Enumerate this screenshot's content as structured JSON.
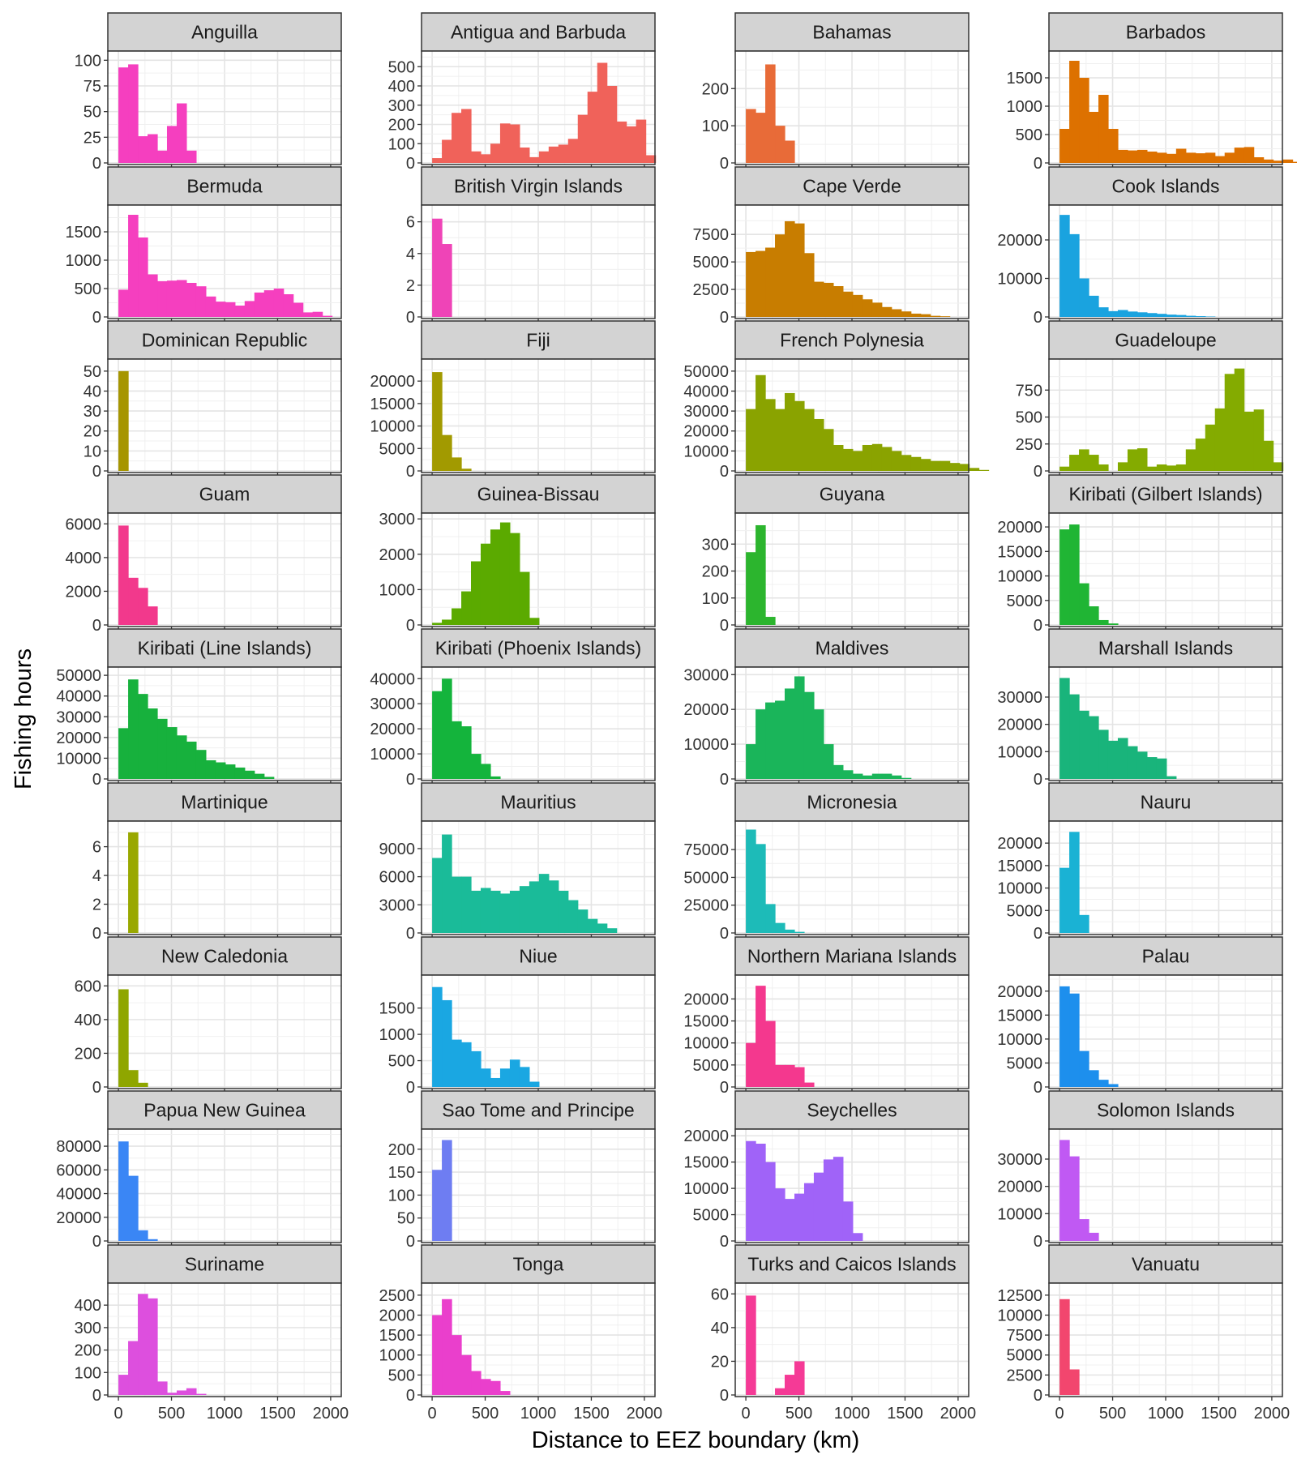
{
  "chart_data": {
    "type": "bar",
    "layout": "facet-grid",
    "xlabel": "Distance to EEZ boundary (km)",
    "ylabel": "Fishing hours",
    "x_axis": {
      "range": [
        -100,
        2100
      ],
      "ticks": [
        0,
        500,
        1000,
        1500,
        2000
      ],
      "tick_labels": [
        "0",
        "500",
        "1000",
        "1500",
        "2000"
      ]
    },
    "bin_width": 91.5,
    "grid": true,
    "strip_fill": "#d3d3d3",
    "panels": [
      {
        "name": "Anguilla",
        "color": "#f53fbf",
        "ymax": 105,
        "ticks": [
          0,
          25,
          50,
          75,
          100
        ],
        "values": [
          93,
          96,
          26,
          28,
          12,
          36,
          58,
          12
        ]
      },
      {
        "name": "Antigua and Barbuda",
        "color": "#f0625a",
        "ymax": 560,
        "ticks": [
          0,
          100,
          200,
          300,
          400,
          500
        ],
        "values": [
          25,
          120,
          260,
          280,
          60,
          45,
          100,
          205,
          200,
          80,
          30,
          60,
          85,
          95,
          125,
          250,
          370,
          520,
          400,
          215,
          190,
          225,
          40
        ]
      },
      {
        "name": "Bahamas",
        "color": "#e86b38",
        "ymax": 290,
        "ticks": [
          0,
          100,
          200
        ],
        "values": [
          145,
          135,
          265,
          100,
          60
        ]
      },
      {
        "name": "Barbados",
        "color": "#dd7100",
        "ymax": 1900,
        "ticks": [
          0,
          500,
          1000,
          1500
        ],
        "values": [
          600,
          1800,
          1500,
          900,
          1200,
          600,
          230,
          220,
          230,
          200,
          180,
          160,
          250,
          180,
          170,
          180,
          120,
          180,
          270,
          280,
          100,
          60,
          40,
          60,
          20
        ]
      },
      {
        "name": "Bermuda",
        "color": "#f53fbf",
        "ymax": 1900,
        "ticks": [
          0,
          500,
          1000,
          1500
        ],
        "values": [
          480,
          1800,
          1400,
          750,
          630,
          640,
          650,
          600,
          540,
          360,
          270,
          260,
          200,
          280,
          430,
          470,
          500,
          400,
          250,
          80,
          90,
          20
        ]
      },
      {
        "name": "British Virgin Islands",
        "color": "#ef44b7",
        "ymax": 6.8,
        "ticks": [
          0,
          2,
          4,
          6
        ],
        "values": [
          6.2,
          4.6
        ]
      },
      {
        "name": "Cape Verde",
        "color": "#c87d00",
        "ymax": 9800,
        "ticks": [
          0,
          2500,
          5000,
          7500
        ],
        "values": [
          5900,
          6000,
          6300,
          7500,
          8700,
          8500,
          5800,
          3200,
          3100,
          2800,
          2300,
          2000,
          1600,
          1300,
          900,
          700,
          500,
          300,
          250,
          100,
          60
        ]
      },
      {
        "name": "Cook Islands",
        "color": "#1aa3df",
        "ymax": 28000,
        "ticks": [
          0,
          10000,
          20000
        ],
        "values": [
          26500,
          21500,
          10000,
          5500,
          2500,
          1500,
          1800,
          1400,
          1200,
          1000,
          800,
          600,
          500,
          300,
          200,
          100
        ]
      },
      {
        "name": "Dominican Republic",
        "color": "#a69500",
        "ymax": 54,
        "ticks": [
          0,
          10,
          20,
          30,
          40,
          50
        ],
        "values": [
          50
        ]
      },
      {
        "name": "Fiji",
        "color": "#a29a00",
        "ymax": 24000,
        "ticks": [
          0,
          5000,
          10000,
          15000,
          20000
        ],
        "values": [
          22000,
          8000,
          3000,
          500
        ]
      },
      {
        "name": "French Polynesia",
        "color": "#8aa300",
        "ymax": 54000,
        "ticks": [
          0,
          10000,
          20000,
          30000,
          40000,
          50000
        ],
        "values": [
          31000,
          48000,
          36000,
          31000,
          39000,
          35000,
          31000,
          26000,
          21000,
          13000,
          11000,
          10000,
          13000,
          13500,
          12000,
          10000,
          8000,
          7000,
          6000,
          5000,
          5000,
          4000,
          3500,
          1500,
          500
        ]
      },
      {
        "name": "Guadeloupe",
        "color": "#84ab00",
        "ymax": 1000,
        "ticks": [
          0,
          250,
          500,
          750
        ],
        "values": [
          40,
          150,
          200,
          150,
          60,
          0,
          80,
          200,
          210,
          40,
          60,
          50,
          60,
          200,
          300,
          430,
          580,
          900,
          950,
          550,
          570,
          280,
          80
        ]
      },
      {
        "name": "Guam",
        "color": "#f2398c",
        "ymax": 6400,
        "ticks": [
          0,
          2000,
          4000,
          6000
        ],
        "values": [
          5900,
          2800,
          2200,
          1100
        ]
      },
      {
        "name": "Guinea-Bissau",
        "color": "#5baa00",
        "ymax": 3050,
        "ticks": [
          0,
          1000,
          2000,
          3000
        ],
        "values": [
          60,
          150,
          470,
          950,
          1800,
          2300,
          2700,
          2900,
          2600,
          1500,
          200
        ]
      },
      {
        "name": "Guyana",
        "color": "#2cb52e",
        "ymax": 400,
        "ticks": [
          0,
          100,
          200,
          300
        ],
        "values": [
          270,
          370,
          30
        ]
      },
      {
        "name": "Kiribati (Gilbert Islands)",
        "color": "#20b534",
        "ymax": 22000,
        "ticks": [
          0,
          5000,
          10000,
          15000,
          20000
        ],
        "values": [
          19500,
          20500,
          8500,
          3800,
          1000,
          300
        ]
      },
      {
        "name": "Kiribati (Line Islands)",
        "color": "#17b13d",
        "ymax": 52000,
        "ticks": [
          0,
          10000,
          20000,
          30000,
          40000,
          50000
        ],
        "values": [
          24500,
          48000,
          41000,
          34000,
          29000,
          25000,
          21000,
          18000,
          14000,
          9000,
          8000,
          7000,
          5500,
          4000,
          2500,
          1000
        ]
      },
      {
        "name": "Kiribati (Phoenix Islands)",
        "color": "#14b43c",
        "ymax": 43000,
        "ticks": [
          0,
          10000,
          20000,
          30000,
          40000
        ],
        "values": [
          35000,
          40000,
          23000,
          21000,
          10000,
          6000,
          1000
        ]
      },
      {
        "name": "Maldives",
        "color": "#1ab55a",
        "ymax": 31000,
        "ticks": [
          0,
          10000,
          20000,
          30000
        ],
        "values": [
          10000,
          20000,
          22000,
          22500,
          26000,
          29500,
          25000,
          20000,
          10000,
          4000,
          2500,
          1500,
          1000,
          1500,
          1500,
          1000,
          300
        ]
      },
      {
        "name": "Marshall Islands",
        "color": "#19b47b",
        "ymax": 39500,
        "ticks": [
          0,
          10000,
          20000,
          30000
        ],
        "values": [
          37000,
          31000,
          25000,
          23000,
          18000,
          14000,
          15000,
          12000,
          10000,
          8000,
          7500,
          1000
        ]
      },
      {
        "name": "Martinique",
        "color": "#99a800",
        "ymax": 7.5,
        "ticks": [
          0,
          2,
          4,
          6
        ],
        "values": [
          0,
          7
        ]
      },
      {
        "name": "Mauritius",
        "color": "#1abb99",
        "ymax": 11500,
        "ticks": [
          0,
          3000,
          6000,
          9000
        ],
        "values": [
          8000,
          10500,
          6000,
          6000,
          4500,
          4800,
          4500,
          4200,
          4500,
          5000,
          5500,
          6300,
          5600,
          4500,
          3500,
          2500,
          1500,
          1000,
          500
        ]
      },
      {
        "name": "Micronesia",
        "color": "#1dbbb8",
        "ymax": 97000,
        "ticks": [
          0,
          25000,
          50000,
          75000
        ],
        "values": [
          93000,
          80000,
          26000,
          9000,
          3000,
          1000
        ]
      },
      {
        "name": "Nauru",
        "color": "#1ab2d4",
        "ymax": 24000,
        "ticks": [
          0,
          5000,
          10000,
          15000,
          20000
        ],
        "values": [
          14500,
          22500,
          4000
        ]
      },
      {
        "name": "New Caledonia",
        "color": "#8fa600",
        "ymax": 640,
        "ticks": [
          0,
          200,
          400,
          600
        ],
        "values": [
          580,
          100,
          25
        ]
      },
      {
        "name": "Niue",
        "color": "#1aa7e2",
        "ymax": 2050,
        "ticks": [
          0,
          500,
          1000,
          1500
        ],
        "values": [
          1900,
          1650,
          900,
          850,
          680,
          350,
          170,
          350,
          520,
          380,
          100
        ]
      },
      {
        "name": "Northern Mariana Islands",
        "color": "#f4388e",
        "ymax": 24500,
        "ticks": [
          0,
          5000,
          10000,
          15000,
          20000
        ],
        "values": [
          10000,
          23000,
          15000,
          5000,
          5000,
          4500,
          1000
        ]
      },
      {
        "name": "Palau",
        "color": "#1d8fed",
        "ymax": 22500,
        "ticks": [
          0,
          5000,
          10000,
          15000,
          20000
        ],
        "values": [
          21000,
          19500,
          7500,
          3500,
          1500,
          600
        ]
      },
      {
        "name": "Papua New Guinea",
        "color": "#3a86f5",
        "ymax": 91000,
        "ticks": [
          0,
          20000,
          40000,
          60000,
          80000
        ],
        "values": [
          84000,
          55000,
          9000,
          1500
        ]
      },
      {
        "name": "Sao Tome and Principe",
        "color": "#6e7df2",
        "ymax": 235,
        "ticks": [
          0,
          50,
          100,
          150,
          200
        ],
        "values": [
          155,
          220
        ]
      },
      {
        "name": "Seychelles",
        "color": "#a063f8",
        "ymax": 20500,
        "ticks": [
          0,
          5000,
          10000,
          15000,
          20000
        ],
        "values": [
          19000,
          18500,
          15000,
          10000,
          8000,
          9000,
          11000,
          13000,
          15500,
          16000,
          7500,
          1500
        ]
      },
      {
        "name": "Solomon Islands",
        "color": "#c059f3",
        "ymax": 39500,
        "ticks": [
          0,
          10000,
          20000,
          30000
        ],
        "values": [
          37000,
          31000,
          8000,
          3000
        ]
      },
      {
        "name": "Suriname",
        "color": "#dd4fde",
        "ymax": 480,
        "ticks": [
          0,
          100,
          200,
          300,
          400
        ],
        "values": [
          90,
          240,
          450,
          430,
          60,
          10,
          20,
          30,
          5
        ]
      },
      {
        "name": "Tonga",
        "color": "#ea3fcc",
        "ymax": 2700,
        "ticks": [
          0,
          500,
          1000,
          1500,
          2000,
          2500
        ],
        "values": [
          2000,
          2400,
          1500,
          1000,
          600,
          400,
          350,
          100
        ]
      },
      {
        "name": "Turks and Caicos Islands",
        "color": "#f53a96",
        "ymax": 64,
        "ticks": [
          0,
          20,
          40,
          60
        ],
        "values": [
          59,
          0,
          0,
          4,
          12,
          20
        ]
      },
      {
        "name": "Vanuatu",
        "color": "#f2466e",
        "ymax": 13500,
        "ticks": [
          0,
          2500,
          5000,
          7500,
          10000,
          12500
        ],
        "values": [
          12000,
          3200
        ]
      }
    ]
  }
}
